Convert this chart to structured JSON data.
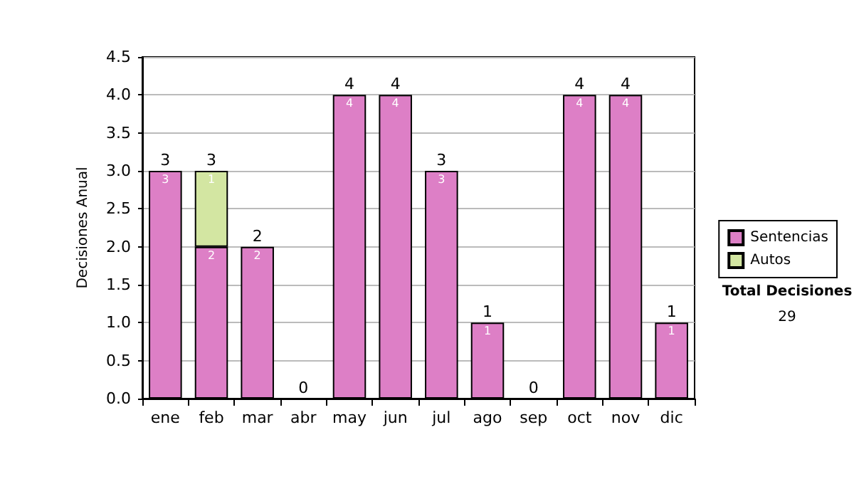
{
  "chart_data": {
    "type": "bar",
    "stacked": true,
    "ylabel": "Decisiones Anual",
    "categories": [
      "ene",
      "feb",
      "mar",
      "abr",
      "may",
      "jun",
      "jul",
      "ago",
      "sep",
      "oct",
      "nov",
      "dic"
    ],
    "series": [
      {
        "name": "Sentencias",
        "color": "#dd7fc6",
        "values": [
          3,
          2,
          2,
          0,
          4,
          4,
          3,
          1,
          0,
          4,
          4,
          1
        ],
        "value_labels": [
          "3",
          "2",
          "2",
          null,
          "4",
          "4",
          "3",
          "1",
          null,
          "4",
          "4",
          "1"
        ]
      },
      {
        "name": "Autos",
        "color": "#d3e6a2",
        "values": [
          0,
          1,
          0,
          0,
          0,
          0,
          0,
          0,
          0,
          0,
          0,
          0
        ],
        "value_labels": [
          null,
          "1",
          null,
          null,
          null,
          null,
          null,
          null,
          null,
          null,
          null,
          null
        ]
      }
    ],
    "totals": [
      "3",
      "3",
      "2",
      "0",
      "4",
      "4",
      "3",
      "1",
      "0",
      "4",
      "4",
      "1"
    ],
    "ylim": [
      0,
      4.5
    ],
    "yticks": [
      {
        "value": 0,
        "label": "0.0"
      },
      {
        "value": 0.5,
        "label": "0.5"
      },
      {
        "value": 1,
        "label": "1.0"
      },
      {
        "value": 1.5,
        "label": "1.5"
      },
      {
        "value": 2,
        "label": "2.0"
      },
      {
        "value": 2.5,
        "label": "2.5"
      },
      {
        "value": 3,
        "label": "3.0"
      },
      {
        "value": 3.5,
        "label": "3.5"
      },
      {
        "value": 4,
        "label": "4.0"
      },
      {
        "value": 4.5,
        "label": "4.5"
      }
    ],
    "grid": "y",
    "legend": "right",
    "annotations": [
      "Total Decisiones",
      "29"
    ]
  }
}
